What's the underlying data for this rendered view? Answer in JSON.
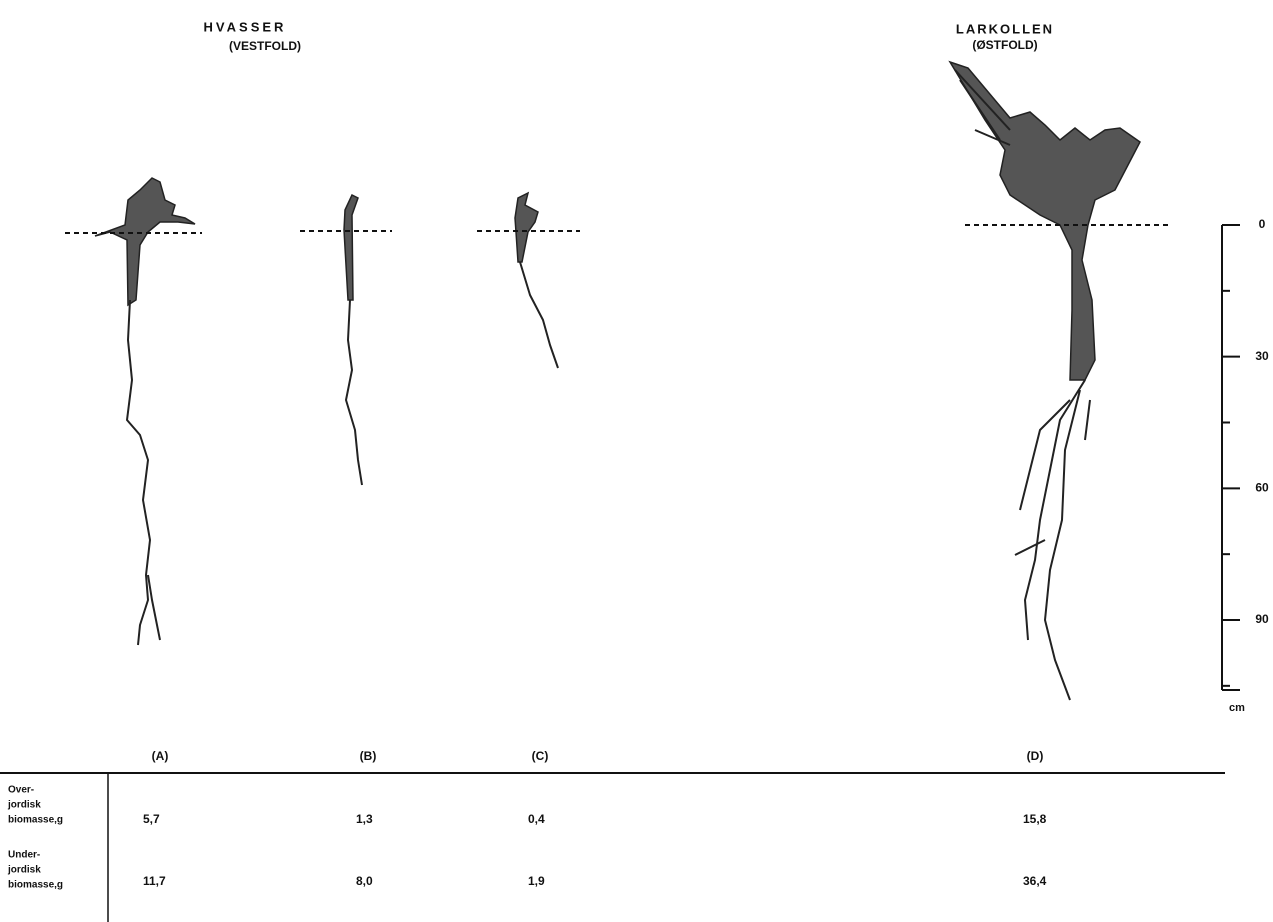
{
  "header": {
    "left": {
      "title": "HVASSER",
      "subtitle": "(VESTFOLD)"
    },
    "right": {
      "title": "LARKOLLEN",
      "subtitle": "(ØSTFOLD)"
    }
  },
  "scale": {
    "ticks": [
      0,
      30,
      60,
      90
    ],
    "unit": "cm"
  },
  "columns": [
    "(A)",
    "(B)",
    "(C)",
    "(D)"
  ],
  "table": {
    "rows": [
      {
        "label": [
          "Over-",
          "jordisk",
          "biomasse,g"
        ],
        "values": [
          "5,7",
          "1,3",
          "0,4",
          "15,8"
        ]
      },
      {
        "label": [
          "Under-",
          "jordisk",
          "biomasse,g"
        ],
        "values": [
          "11,7",
          "8,0",
          "1,9",
          "36,4"
        ]
      }
    ]
  }
}
